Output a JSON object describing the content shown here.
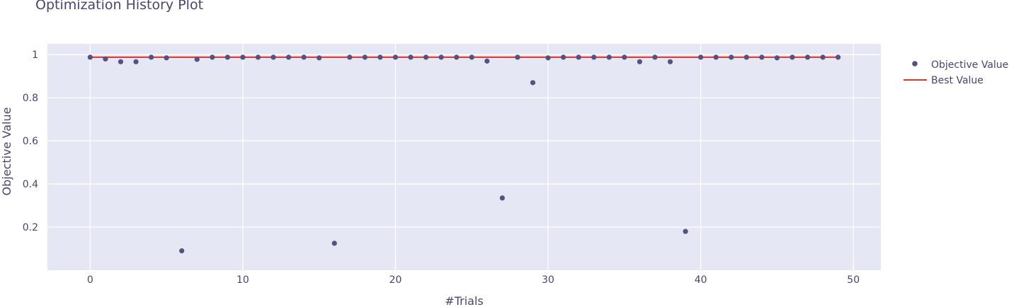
{
  "chart_data": {
    "type": "scatter",
    "title": "Optimization History Plot",
    "xlabel": "#Trials",
    "ylabel": "Objective Value",
    "xlim": [
      -2.8,
      51.8
    ],
    "ylim": [
      0.0,
      1.05
    ],
    "x_ticks": [
      0,
      10,
      20,
      30,
      40,
      50
    ],
    "y_ticks": [
      0.2,
      0.4,
      0.6,
      0.8,
      1
    ],
    "grid": true,
    "legend_position": "top-right",
    "colors": {
      "plot_bg": "#e5e8f4",
      "grid": "#ffffff",
      "point": "#545283",
      "best_line": "#e0302b",
      "text": "#4b4470"
    },
    "series": [
      {
        "name": "Objective Value",
        "kind": "markers",
        "x": [
          0,
          1,
          2,
          3,
          4,
          5,
          6,
          7,
          8,
          9,
          10,
          11,
          12,
          13,
          14,
          15,
          16,
          17,
          18,
          19,
          20,
          21,
          22,
          23,
          24,
          25,
          26,
          27,
          28,
          29,
          30,
          31,
          32,
          33,
          34,
          35,
          36,
          37,
          38,
          39,
          40,
          41,
          42,
          43,
          44,
          45,
          46,
          47,
          48,
          49
        ],
        "y": [
          0.988,
          0.98,
          0.967,
          0.967,
          0.988,
          0.985,
          0.09,
          0.978,
          0.988,
          0.988,
          0.988,
          0.988,
          0.988,
          0.988,
          0.988,
          0.985,
          0.125,
          0.988,
          0.988,
          0.988,
          0.988,
          0.988,
          0.988,
          0.988,
          0.988,
          0.988,
          0.97,
          0.335,
          0.988,
          0.87,
          0.985,
          0.988,
          0.988,
          0.988,
          0.988,
          0.988,
          0.967,
          0.988,
          0.967,
          0.18,
          0.988,
          0.988,
          0.988,
          0.988,
          0.988,
          0.985,
          0.988,
          0.988,
          0.988,
          0.988
        ]
      },
      {
        "name": "Best Value",
        "kind": "line",
        "x": [
          0,
          49
        ],
        "y": [
          0.988,
          0.988
        ]
      }
    ]
  }
}
